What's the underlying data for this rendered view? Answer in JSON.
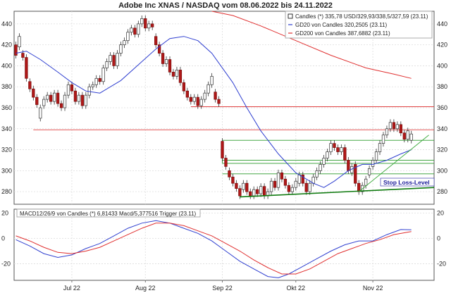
{
  "chart_data": [
    {
      "type": "candlestick",
      "title": "Adobe Inc XNAS / NASDAQ vom 08.06.2022 bis 24.11.2022",
      "y_ticks": [
        280,
        300,
        320,
        340,
        360,
        380,
        400,
        420,
        440
      ],
      "ylim": [
        268,
        452
      ],
      "x_ticks": [
        {
          "label": "Jul 22",
          "index": 16
        },
        {
          "label": "Aug 22",
          "index": 37
        },
        {
          "label": "Sep 22",
          "index": 59
        },
        {
          "label": "Okt 22",
          "index": 80
        },
        {
          "label": "Nov 22",
          "index": 102
        }
      ],
      "x_count": 120,
      "legend": {
        "placement": "top-right",
        "entries": [
          {
            "label": "Candles (*) 335,78 USD/329,93/338,5/327,59 (23.11)",
            "color": "#000000",
            "marker": "box"
          },
          {
            "label": "GD20 von Candles 320,2505 (23.11)",
            "color": "#2f3fd0",
            "marker": "line"
          },
          {
            "label": "GD200 von Candles 387,6882 (23.11)",
            "color": "#e03030",
            "marker": "line"
          }
        ]
      },
      "candles": [
        {
          "i": 0,
          "o": 420,
          "c": 410
        },
        {
          "i": 1,
          "o": 418,
          "c": 428
        },
        {
          "i": 2,
          "o": 412,
          "c": 408
        },
        {
          "i": 3,
          "o": 408,
          "c": 388
        },
        {
          "i": 4,
          "o": 385,
          "c": 378
        },
        {
          "i": 5,
          "o": 378,
          "c": 370
        },
        {
          "i": 6,
          "o": 370,
          "c": 363
        },
        {
          "i": 7,
          "o": 350,
          "c": 360
        },
        {
          "i": 8,
          "o": 362,
          "c": 368
        },
        {
          "i": 9,
          "o": 368,
          "c": 372
        },
        {
          "i": 10,
          "o": 372,
          "c": 366
        },
        {
          "i": 11,
          "o": 366,
          "c": 374
        },
        {
          "i": 12,
          "o": 374,
          "c": 364
        },
        {
          "i": 13,
          "o": 364,
          "c": 360
        },
        {
          "i": 14,
          "o": 360,
          "c": 372
        },
        {
          "i": 15,
          "o": 372,
          "c": 382
        },
        {
          "i": 16,
          "o": 382,
          "c": 376
        },
        {
          "i": 17,
          "o": 376,
          "c": 366
        },
        {
          "i": 18,
          "o": 366,
          "c": 372
        },
        {
          "i": 19,
          "o": 372,
          "c": 362
        },
        {
          "i": 20,
          "o": 362,
          "c": 372
        },
        {
          "i": 21,
          "o": 372,
          "c": 380
        },
        {
          "i": 22,
          "o": 380,
          "c": 382
        },
        {
          "i": 23,
          "o": 382,
          "c": 388
        },
        {
          "i": 24,
          "o": 388,
          "c": 385
        },
        {
          "i": 25,
          "o": 385,
          "c": 398
        },
        {
          "i": 26,
          "o": 398,
          "c": 404
        },
        {
          "i": 27,
          "o": 404,
          "c": 410
        },
        {
          "i": 28,
          "o": 410,
          "c": 400
        },
        {
          "i": 29,
          "o": 400,
          "c": 412
        },
        {
          "i": 30,
          "o": 412,
          "c": 420
        },
        {
          "i": 31,
          "o": 420,
          "c": 424
        },
        {
          "i": 32,
          "o": 424,
          "c": 432
        },
        {
          "i": 33,
          "o": 432,
          "c": 436
        },
        {
          "i": 34,
          "o": 436,
          "c": 430
        },
        {
          "i": 35,
          "o": 430,
          "c": 440
        },
        {
          "i": 36,
          "o": 440,
          "c": 445
        },
        {
          "i": 37,
          "o": 445,
          "c": 436
        },
        {
          "i": 38,
          "o": 436,
          "c": 440
        },
        {
          "i": 39,
          "o": 440,
          "c": 437
        },
        {
          "i": 40,
          "o": 428,
          "c": 420
        },
        {
          "i": 41,
          "o": 420,
          "c": 412
        },
        {
          "i": 42,
          "o": 412,
          "c": 402
        },
        {
          "i": 43,
          "o": 402,
          "c": 406
        },
        {
          "i": 44,
          "o": 406,
          "c": 394
        },
        {
          "i": 45,
          "o": 394,
          "c": 390
        },
        {
          "i": 46,
          "o": 390,
          "c": 396
        },
        {
          "i": 47,
          "o": 396,
          "c": 384
        },
        {
          "i": 48,
          "o": 384,
          "c": 376
        },
        {
          "i": 49,
          "o": 376,
          "c": 370
        },
        {
          "i": 50,
          "o": 370,
          "c": 366
        },
        {
          "i": 51,
          "o": 366,
          "c": 370
        },
        {
          "i": 52,
          "o": 370,
          "c": 362
        },
        {
          "i": 53,
          "o": 362,
          "c": 368
        },
        {
          "i": 54,
          "o": 368,
          "c": 374
        },
        {
          "i": 55,
          "o": 374,
          "c": 382
        },
        {
          "i": 56,
          "o": 382,
          "c": 390
        },
        {
          "i": 57,
          "o": 375,
          "c": 368
        },
        {
          "i": 58,
          "o": 368,
          "c": 364
        },
        {
          "i": 59,
          "o": 328,
          "c": 312
        },
        {
          "i": 60,
          "o": 312,
          "c": 304
        },
        {
          "i": 61,
          "o": 300,
          "c": 294
        },
        {
          "i": 62,
          "o": 294,
          "c": 288
        },
        {
          "i": 63,
          "o": 288,
          "c": 283
        },
        {
          "i": 64,
          "o": 283,
          "c": 276
        },
        {
          "i": 65,
          "o": 282,
          "c": 288
        },
        {
          "i": 66,
          "o": 288,
          "c": 280
        },
        {
          "i": 67,
          "o": 280,
          "c": 276
        },
        {
          "i": 68,
          "o": 276,
          "c": 282
        },
        {
          "i": 69,
          "o": 282,
          "c": 278
        },
        {
          "i": 70,
          "o": 278,
          "c": 285
        },
        {
          "i": 71,
          "o": 285,
          "c": 276
        },
        {
          "i": 72,
          "o": 276,
          "c": 280
        },
        {
          "i": 73,
          "o": 280,
          "c": 290
        },
        {
          "i": 74,
          "o": 290,
          "c": 284
        },
        {
          "i": 75,
          "o": 284,
          "c": 298
        },
        {
          "i": 76,
          "o": 298,
          "c": 292
        },
        {
          "i": 77,
          "o": 292,
          "c": 286
        },
        {
          "i": 78,
          "o": 286,
          "c": 280
        },
        {
          "i": 79,
          "o": 280,
          "c": 284
        },
        {
          "i": 80,
          "o": 284,
          "c": 290
        },
        {
          "i": 81,
          "o": 288,
          "c": 296
        },
        {
          "i": 82,
          "o": 296,
          "c": 288
        },
        {
          "i": 83,
          "o": 288,
          "c": 280
        },
        {
          "i": 84,
          "o": 280,
          "c": 288
        },
        {
          "i": 85,
          "o": 288,
          "c": 294
        },
        {
          "i": 86,
          "o": 294,
          "c": 300
        },
        {
          "i": 87,
          "o": 300,
          "c": 306
        },
        {
          "i": 88,
          "o": 306,
          "c": 312
        },
        {
          "i": 89,
          "o": 312,
          "c": 318
        },
        {
          "i": 90,
          "o": 318,
          "c": 326
        },
        {
          "i": 91,
          "o": 326,
          "c": 322
        },
        {
          "i": 92,
          "o": 322,
          "c": 318
        },
        {
          "i": 93,
          "o": 318,
          "c": 322
        },
        {
          "i": 94,
          "o": 322,
          "c": 310
        },
        {
          "i": 95,
          "o": 310,
          "c": 300
        },
        {
          "i": 96,
          "o": 298,
          "c": 304
        },
        {
          "i": 97,
          "o": 306,
          "c": 288
        },
        {
          "i": 98,
          "o": 288,
          "c": 280
        },
        {
          "i": 99,
          "o": 280,
          "c": 286
        },
        {
          "i": 100,
          "o": 286,
          "c": 292
        },
        {
          "i": 101,
          "o": 296,
          "c": 302
        },
        {
          "i": 102,
          "o": 304,
          "c": 310
        },
        {
          "i": 103,
          "o": 310,
          "c": 318
        },
        {
          "i": 104,
          "o": 318,
          "c": 326
        },
        {
          "i": 105,
          "o": 326,
          "c": 334
        },
        {
          "i": 106,
          "o": 334,
          "c": 340
        },
        {
          "i": 107,
          "o": 340,
          "c": 346
        },
        {
          "i": 108,
          "o": 346,
          "c": 340
        },
        {
          "i": 109,
          "o": 340,
          "c": 344
        },
        {
          "i": 110,
          "o": 344,
          "c": 336
        },
        {
          "i": 111,
          "o": 336,
          "c": 330
        },
        {
          "i": 112,
          "o": 330,
          "c": 338
        },
        {
          "i": 113,
          "o": 329,
          "c": 335
        }
      ],
      "gd20": [
        [
          0,
          412
        ],
        [
          3,
          414
        ],
        [
          7,
          406
        ],
        [
          12,
          394
        ],
        [
          16,
          384
        ],
        [
          20,
          376
        ],
        [
          24,
          374
        ],
        [
          30,
          386
        ],
        [
          36,
          404
        ],
        [
          40,
          416
        ],
        [
          44,
          426
        ],
        [
          48,
          428
        ],
        [
          52,
          424
        ],
        [
          56,
          412
        ],
        [
          59,
          398
        ],
        [
          62,
          384
        ],
        [
          66,
          360
        ],
        [
          70,
          338
        ],
        [
          75,
          316
        ],
        [
          80,
          298
        ],
        [
          85,
          288
        ],
        [
          88,
          284
        ],
        [
          91,
          290
        ],
        [
          95,
          300
        ],
        [
          99,
          306
        ],
        [
          102,
          306
        ],
        [
          106,
          310
        ],
        [
          110,
          316
        ],
        [
          113,
          320
        ]
      ],
      "gd200": [
        [
          56,
          452
        ],
        [
          62,
          448
        ],
        [
          70,
          438
        ],
        [
          80,
          424
        ],
        [
          90,
          410
        ],
        [
          100,
          398
        ],
        [
          108,
          392
        ],
        [
          113,
          388
        ]
      ],
      "hlines_red": [
        {
          "y": 339,
          "x0": 5,
          "x1": 120
        },
        {
          "y": 361,
          "x0": 50,
          "x1": 120
        }
      ],
      "hlines_green": [
        {
          "y": 329,
          "x0": 59,
          "x1": 120
        },
        {
          "y": 310,
          "x0": 59,
          "x1": 120
        },
        {
          "y": 307,
          "x0": 59,
          "x1": 120
        },
        {
          "y": 297,
          "x0": 59,
          "x1": 120
        }
      ],
      "support_line": {
        "x0": 64,
        "y0": 275,
        "x1": 120,
        "y1": 284
      },
      "uptrend_line": {
        "x0": 98,
        "y0": 280,
        "x1": 118,
        "y1": 334
      },
      "annotation": "Stop Loss-Level"
    },
    {
      "type": "line",
      "legend_label": "MACD12/26/9 von Candles (*) 6,81433 Macd/5,377516 Trigger (23.11)",
      "y_ticks": [
        -20,
        0,
        20
      ],
      "ylim": [
        -33,
        23
      ],
      "series": [
        {
          "name": "Macd",
          "color": "#3040d0",
          "points": [
            [
              0,
              -1
            ],
            [
              4,
              -6
            ],
            [
              8,
              -12
            ],
            [
              12,
              -15
            ],
            [
              16,
              -13
            ],
            [
              20,
              -8
            ],
            [
              24,
              -4
            ],
            [
              28,
              2
            ],
            [
              32,
              8
            ],
            [
              36,
              12
            ],
            [
              40,
              14
            ],
            [
              44,
              12
            ],
            [
              48,
              8
            ],
            [
              52,
              4
            ],
            [
              56,
              -2
            ],
            [
              60,
              -10
            ],
            [
              64,
              -18
            ],
            [
              68,
              -24
            ],
            [
              72,
              -30
            ],
            [
              75,
              -31
            ],
            [
              78,
              -28
            ],
            [
              82,
              -22
            ],
            [
              86,
              -16
            ],
            [
              90,
              -10
            ],
            [
              94,
              -5
            ],
            [
              98,
              -2
            ],
            [
              102,
              -2
            ],
            [
              106,
              3
            ],
            [
              110,
              7
            ],
            [
              113,
              6.8
            ]
          ]
        },
        {
          "name": "Trigger",
          "color": "#e03030",
          "points": [
            [
              0,
              2
            ],
            [
              4,
              -2
            ],
            [
              8,
              -7
            ],
            [
              12,
              -11
            ],
            [
              16,
              -12
            ],
            [
              20,
              -10
            ],
            [
              24,
              -7
            ],
            [
              28,
              -2
            ],
            [
              32,
              3
            ],
            [
              36,
              8
            ],
            [
              40,
              12
            ],
            [
              44,
              12
            ],
            [
              48,
              10
            ],
            [
              52,
              6
            ],
            [
              56,
              2
            ],
            [
              60,
              -4
            ],
            [
              64,
              -10
            ],
            [
              68,
              -17
            ],
            [
              72,
              -23
            ],
            [
              76,
              -28
            ],
            [
              80,
              -28
            ],
            [
              84,
              -24
            ],
            [
              88,
              -18
            ],
            [
              92,
              -12
            ],
            [
              96,
              -8
            ],
            [
              100,
              -4
            ],
            [
              104,
              -1
            ],
            [
              108,
              3
            ],
            [
              113,
              5.4
            ]
          ]
        }
      ]
    }
  ]
}
